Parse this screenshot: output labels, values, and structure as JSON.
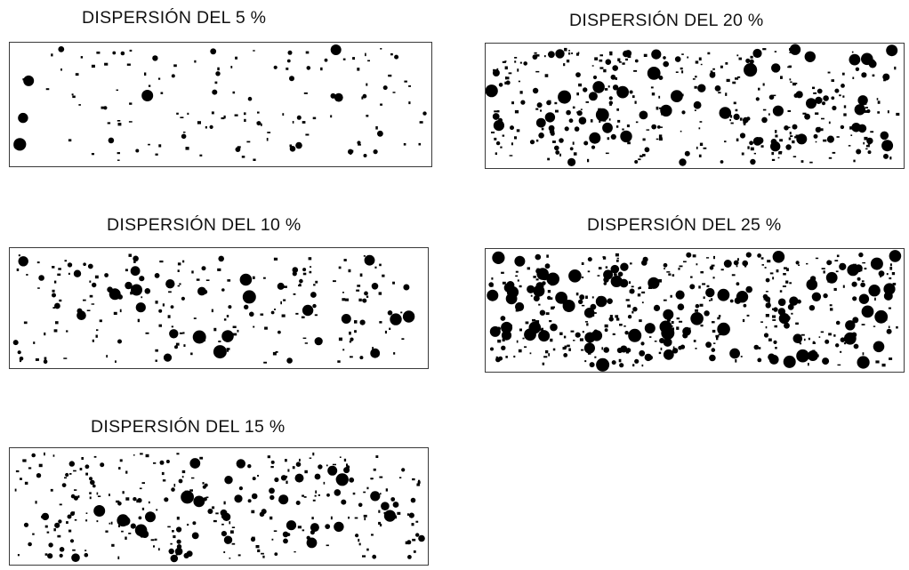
{
  "panels": [
    {
      "id": "p5",
      "title": "DISPERSIÓN DEL 5 %",
      "dispersion_percent": 5
    },
    {
      "id": "p20",
      "title": "DISPERSIÓN DEL 20 %",
      "dispersion_percent": 20
    },
    {
      "id": "p10",
      "title": "DISPERSIÓN DEL 10 %",
      "dispersion_percent": 10
    },
    {
      "id": "p25",
      "title": "DISPERSIÓN DEL 25 %",
      "dispersion_percent": 25
    },
    {
      "id": "p15",
      "title": "DISPERSIÓN DEL 15 %",
      "dispersion_percent": 15
    }
  ],
  "colors": {
    "dots": "#000000",
    "border": "#3a3a3a",
    "background": "#ffffff"
  }
}
